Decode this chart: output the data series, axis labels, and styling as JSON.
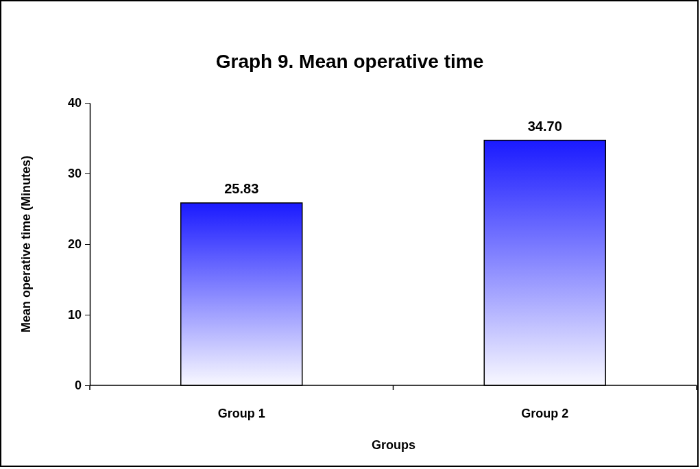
{
  "chart_data": {
    "type": "bar",
    "title": "Graph 9. Mean operative time",
    "xlabel": "Groups",
    "ylabel": "Mean operative time (Minutes)",
    "categories": [
      "Group 1",
      "Group 2"
    ],
    "values": [
      25.83,
      34.7
    ],
    "value_labels": [
      "25.83",
      "34.70"
    ],
    "color": "#1a1aff",
    "ylim": [
      0,
      40
    ],
    "yticks": [
      0,
      10,
      20,
      30,
      40
    ],
    "grid": false,
    "legend": false
  }
}
